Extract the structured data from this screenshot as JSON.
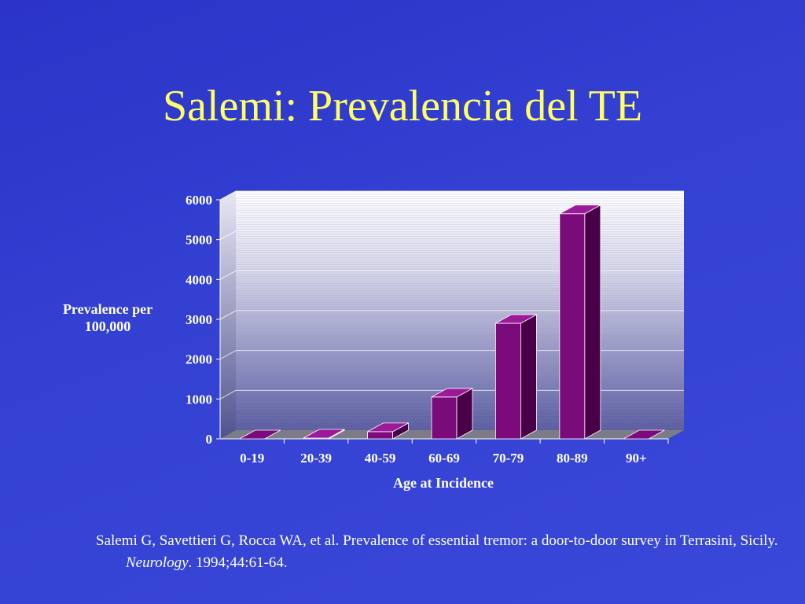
{
  "slide": {
    "title": "Salemi: Prevalencia del TE",
    "citation": {
      "pre": "Salemi G, Savettieri G, Rocca WA, et al.  Prevalence of essential tremor: a door-to-door survey in Terrasini, Sicily.  ",
      "journal": "Neurology",
      "post": ". 1994;44:61-64."
    }
  },
  "chart_data": {
    "type": "bar",
    "title": "",
    "xlabel": "Age at Incidence",
    "ylabel": "Prevalence per 100,000",
    "categories": [
      "0-19",
      "20-39",
      "40-59",
      "60-69",
      "70-79",
      "80-89",
      "90+"
    ],
    "values": [
      0,
      20,
      180,
      1050,
      2900,
      5650,
      0
    ],
    "ylim": [
      0,
      6000
    ],
    "yticks": [
      0,
      1000,
      2000,
      3000,
      4000,
      5000,
      6000
    ],
    "grid": true,
    "legend": "none",
    "three_d": true,
    "colors": {
      "bar_front": "#7b0a7b",
      "bar_side": "#4a0048",
      "bar_top": "#9a1a9a",
      "floor": "#7c7c86",
      "axis_text": "#ffffff"
    }
  }
}
